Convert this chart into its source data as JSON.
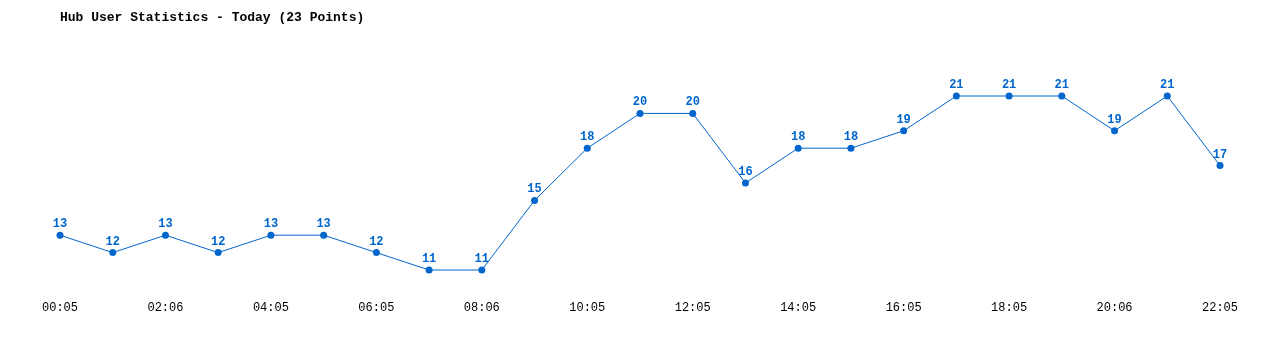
{
  "chart_data": {
    "type": "line",
    "title": "Hub User Statistics - Today (23 Points)",
    "categories": [
      "00:05",
      null,
      "02:06",
      null,
      "04:05",
      null,
      "06:05",
      null,
      "08:06",
      null,
      "10:05",
      null,
      "12:05",
      null,
      "14:05",
      null,
      "16:05",
      null,
      "18:05",
      null,
      "20:06",
      null,
      "22:05"
    ],
    "values": [
      13,
      12,
      13,
      12,
      13,
      13,
      12,
      11,
      11,
      15,
      18,
      20,
      20,
      16,
      18,
      18,
      19,
      21,
      21,
      21,
      19,
      21,
      17
    ],
    "color": "#0066cc",
    "marker": "circle",
    "data_labels": true,
    "grid": false
  }
}
